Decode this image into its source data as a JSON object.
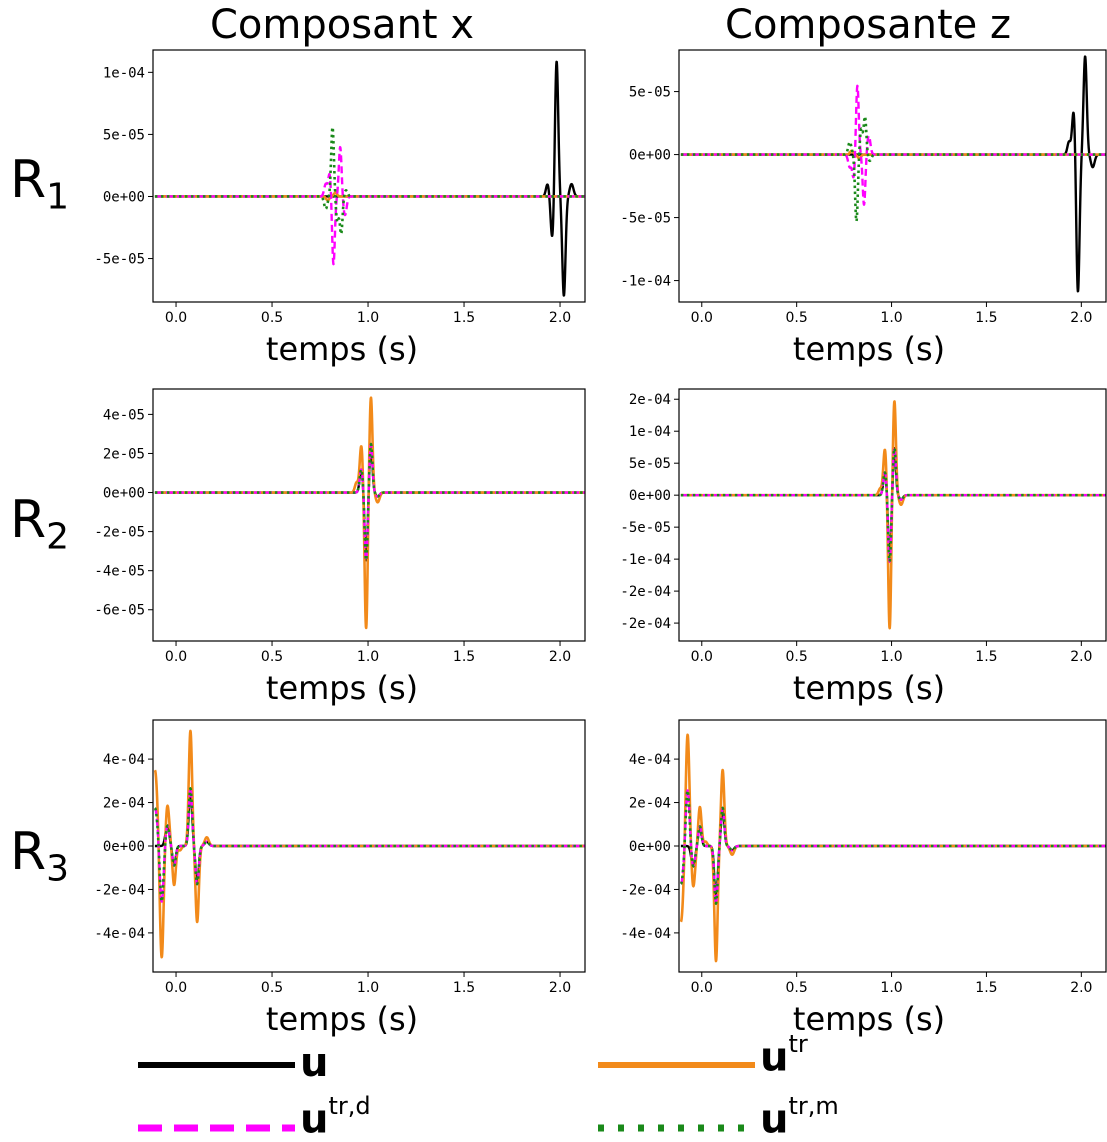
{
  "column_titles": [
    "Composant x",
    "Composante z"
  ],
  "row_labels": [
    {
      "main": "R",
      "sub": "1"
    },
    {
      "main": "R",
      "sub": "2"
    },
    {
      "main": "R",
      "sub": "3"
    }
  ],
  "legend": [
    {
      "main": "u",
      "sup": "",
      "color": "#000000",
      "style": "solid"
    },
    {
      "main": "u",
      "sup": "tr",
      "color": "#ff8c00",
      "style": "solid"
    },
    {
      "main": "u",
      "sup": "tr,d",
      "color": "#ff00ff",
      "style": "dashed"
    },
    {
      "main": "u",
      "sup": "tr,m",
      "color": "#008000",
      "style": "dotted"
    }
  ],
  "colors": {
    "u": "#000000",
    "utr": "#f28a1a",
    "utrd": "#ff00ff",
    "utrm": "#1a8a1a"
  },
  "chart_data": [
    {
      "type": "line",
      "row": 1,
      "col": 1,
      "xlabel": "temps (s)",
      "xlim": [
        -0.12,
        2.13
      ],
      "ylim": [
        -8.5e-05,
        0.000118
      ],
      "xticks": [
        0.0,
        0.5,
        1.0,
        1.5,
        2.0
      ],
      "xtick_labels": [
        "0.0",
        "0.5",
        "1.0",
        "1.5",
        "2.0"
      ],
      "yticks": [
        -5e-05,
        0.0,
        5e-05,
        0.0001
      ],
      "ytick_labels": [
        "-5e-05",
        "0e+00",
        "5e-05",
        "1e-04"
      ],
      "series": [
        {
          "key": "u",
          "pulses": [
            [
              1.935,
              1e-05,
              0.012
            ],
            [
              1.96,
              -3.5e-05,
              0.012
            ],
            [
              1.982,
              0.00011,
              0.012
            ],
            [
              2.02,
              -8e-05,
              0.012
            ],
            [
              2.06,
              1e-05,
              0.014
            ]
          ]
        },
        {
          "key": "utr",
          "pulses": [
            [
              0.79,
              -3e-06,
              0.012
            ],
            [
              0.83,
              3e-06,
              0.012
            ]
          ]
        },
        {
          "key": "utrd",
          "pulses": [
            [
              0.78,
              1e-05,
              0.012
            ],
            [
              0.8,
              1.8e-05,
              0.01
            ],
            [
              0.82,
              -5.5e-05,
              0.01
            ],
            [
              0.855,
              4e-05,
              0.01
            ],
            [
              0.88,
              -1.5e-05,
              0.012
            ]
          ]
        },
        {
          "key": "utrm",
          "pulses": [
            [
              0.78,
              -1e-05,
              0.012
            ],
            [
              0.815,
              5.6e-05,
              0.01
            ],
            [
              0.84,
              -2e-05,
              0.01
            ],
            [
              0.86,
              -3e-05,
              0.01
            ],
            [
              0.885,
              5e-06,
              0.012
            ]
          ]
        }
      ]
    },
    {
      "type": "line",
      "row": 1,
      "col": 2,
      "xlabel": "temps (s)",
      "xlim": [
        -0.12,
        2.13
      ],
      "ylim": [
        -0.000117,
        8.3e-05
      ],
      "xticks": [
        0.0,
        0.5,
        1.0,
        1.5,
        2.0
      ],
      "xtick_labels": [
        "0.0",
        "0.5",
        "1.0",
        "1.5",
        "2.0"
      ],
      "yticks": [
        -0.0001,
        -5e-05,
        0.0,
        5e-05
      ],
      "ytick_labels": [
        "-1e-04",
        "-5e-05",
        "0e+00",
        "5e-05"
      ],
      "series": [
        {
          "key": "u",
          "pulses": [
            [
              1.935,
              1e-05,
              0.012
            ],
            [
              1.96,
              3.6e-05,
              0.012
            ],
            [
              1.982,
              -0.00011,
              0.012
            ],
            [
              2.02,
              7.8e-05,
              0.012
            ],
            [
              2.06,
              -1e-05,
              0.014
            ]
          ]
        },
        {
          "key": "utr",
          "pulses": [
            [
              0.79,
              3e-06,
              0.012
            ],
            [
              0.83,
              -3e-06,
              0.012
            ]
          ]
        },
        {
          "key": "utrd",
          "pulses": [
            [
              0.78,
              -1e-05,
              0.012
            ],
            [
              0.8,
              -1.8e-05,
              0.01
            ],
            [
              0.82,
              5.5e-05,
              0.01
            ],
            [
              0.855,
              -4e-05,
              0.01
            ],
            [
              0.88,
              1.5e-05,
              0.012
            ]
          ]
        },
        {
          "key": "utrm",
          "pulses": [
            [
              0.78,
              1e-05,
              0.012
            ],
            [
              0.815,
              -5.3e-05,
              0.01
            ],
            [
              0.84,
              2e-05,
              0.01
            ],
            [
              0.86,
              3e-05,
              0.01
            ],
            [
              0.885,
              -5e-06,
              0.012
            ]
          ]
        }
      ]
    },
    {
      "type": "line",
      "row": 2,
      "col": 1,
      "xlabel": "temps (s)",
      "xlim": [
        -0.12,
        2.13
      ],
      "ylim": [
        -7.6e-05,
        5.3e-05
      ],
      "xticks": [
        0.0,
        0.5,
        1.0,
        1.5,
        2.0
      ],
      "xtick_labels": [
        "0.0",
        "0.5",
        "1.0",
        "1.5",
        "2.0"
      ],
      "yticks": [
        -6e-05,
        -4e-05,
        -2e-05,
        0.0,
        2e-05,
        4e-05
      ],
      "ytick_labels": [
        "-6e-05",
        "-4e-05",
        "-2e-05",
        "0e+00",
        "2e-05",
        "4e-05"
      ],
      "series": [
        {
          "key": "utr",
          "pulses": [
            [
              0.94,
              5e-06,
              0.012
            ],
            [
              0.965,
              2.4e-05,
              0.012
            ],
            [
              0.99,
              -7e-05,
              0.011
            ],
            [
              1.015,
              4.9e-05,
              0.011
            ],
            [
              1.05,
              -5e-06,
              0.014
            ]
          ]
        },
        {
          "key": "u",
          "pulses": [
            [
              0.965,
              1.2e-05,
              0.012
            ],
            [
              0.99,
              -3.5e-05,
              0.011
            ],
            [
              1.015,
              2.5e-05,
              0.011
            ],
            [
              1.05,
              -2e-06,
              0.014
            ]
          ]
        },
        {
          "key": "utrd",
          "pulses": [
            [
              0.965,
              1.2e-05,
              0.012
            ],
            [
              0.99,
              -3.5e-05,
              0.011
            ],
            [
              1.015,
              2.5e-05,
              0.011
            ],
            [
              1.05,
              -2e-06,
              0.014
            ]
          ]
        },
        {
          "key": "utrm",
          "pulses": [
            [
              0.965,
              1.2e-05,
              0.012
            ],
            [
              0.99,
              -3.5e-05,
              0.011
            ],
            [
              1.015,
              2.5e-05,
              0.011
            ],
            [
              1.05,
              -2e-06,
              0.014
            ]
          ]
        }
      ]
    },
    {
      "type": "line",
      "row": 2,
      "col": 2,
      "xlabel": "temps (s)",
      "xlim": [
        -0.12,
        2.13
      ],
      "ylim": [
        -0.000228,
        0.000166
      ],
      "xticks": [
        0.0,
        0.5,
        1.0,
        1.5,
        2.0
      ],
      "xtick_labels": [
        "0.0",
        "0.5",
        "1.0",
        "1.5",
        "2.0"
      ],
      "yticks": [
        -0.0002,
        -0.00015,
        -0.0001,
        -5e-05,
        0.0,
        5e-05,
        0.0001,
        0.00015
      ],
      "ytick_labels": [
        "-2e-04",
        "-2e-04",
        "-1e-04",
        "-5e-05",
        "0e+00",
        "5e-05",
        "1e-04",
        "2e-04"
      ],
      "series": [
        {
          "key": "utr",
          "pulses": [
            [
              0.94,
              1e-05,
              0.012
            ],
            [
              0.965,
              7.2e-05,
              0.012
            ],
            [
              0.99,
              -0.00021,
              0.011
            ],
            [
              1.015,
              0.000148,
              0.011
            ],
            [
              1.05,
              -1.5e-05,
              0.014
            ]
          ]
        },
        {
          "key": "u",
          "pulses": [
            [
              0.965,
              3.6e-05,
              0.012
            ],
            [
              0.99,
              -0.000105,
              0.011
            ],
            [
              1.015,
              7.4e-05,
              0.011
            ],
            [
              1.05,
              -7e-06,
              0.014
            ]
          ]
        },
        {
          "key": "utrd",
          "pulses": [
            [
              0.965,
              3.6e-05,
              0.012
            ],
            [
              0.99,
              -0.000105,
              0.011
            ],
            [
              1.015,
              7.4e-05,
              0.011
            ],
            [
              1.05,
              -7e-06,
              0.014
            ]
          ]
        },
        {
          "key": "utrm",
          "pulses": [
            [
              0.965,
              3.6e-05,
              0.012
            ],
            [
              0.99,
              -0.000105,
              0.011
            ],
            [
              1.015,
              7.4e-05,
              0.011
            ],
            [
              1.05,
              -7e-06,
              0.014
            ]
          ]
        }
      ]
    },
    {
      "type": "line",
      "row": 3,
      "col": 1,
      "xlabel": "temps (s)",
      "xlim": [
        -0.12,
        2.13
      ],
      "ylim": [
        -0.00058,
        0.00058
      ],
      "xticks": [
        0.0,
        0.5,
        1.0,
        1.5,
        2.0
      ],
      "xtick_labels": [
        "0.0",
        "0.5",
        "1.0",
        "1.5",
        "2.0"
      ],
      "yticks": [
        -0.0004,
        -0.0002,
        0.0,
        0.0002,
        0.0004
      ],
      "ytick_labels": [
        "-4e-04",
        "-2e-04",
        "0e+00",
        "2e-04",
        "4e-04"
      ],
      "series": [
        {
          "key": "utr",
          "start": 0.00035,
          "pulses": [
            [
              -0.075,
              -0.00053,
              0.014
            ],
            [
              -0.045,
              0.00019,
              0.014
            ],
            [
              -0.01,
              -0.00018,
              0.012
            ],
            [
              0.02,
              -2e-05,
              0.012
            ],
            [
              0.075,
              0.00053,
              0.012
            ],
            [
              0.11,
              -0.00035,
              0.012
            ],
            [
              0.16,
              4e-05,
              0.015
            ]
          ]
        },
        {
          "key": "u",
          "start": 0.0,
          "pulses": [
            [
              -0.045,
              9.5e-05,
              0.014
            ],
            [
              -0.01,
              -9e-05,
              0.012
            ],
            [
              0.075,
              0.000265,
              0.012
            ],
            [
              0.11,
              -0.000175,
              0.012
            ],
            [
              0.16,
              2e-05,
              0.015
            ]
          ]
        },
        {
          "key": "utrd",
          "start": 0.000175,
          "pulses": [
            [
              -0.075,
              -0.000265,
              0.014
            ],
            [
              -0.045,
              9.5e-05,
              0.014
            ],
            [
              -0.01,
              -9e-05,
              0.012
            ],
            [
              0.075,
              0.000265,
              0.012
            ],
            [
              0.11,
              -0.000175,
              0.012
            ],
            [
              0.16,
              2e-05,
              0.015
            ]
          ]
        },
        {
          "key": "utrm",
          "start": 0.000175,
          "pulses": [
            [
              -0.075,
              -0.000265,
              0.014
            ],
            [
              -0.045,
              9.5e-05,
              0.014
            ],
            [
              -0.01,
              -9e-05,
              0.012
            ],
            [
              0.075,
              0.000265,
              0.012
            ],
            [
              0.11,
              -0.000175,
              0.012
            ],
            [
              0.16,
              2e-05,
              0.015
            ]
          ]
        }
      ]
    },
    {
      "type": "line",
      "row": 3,
      "col": 2,
      "xlabel": "temps (s)",
      "xlim": [
        -0.12,
        2.13
      ],
      "ylim": [
        -0.00058,
        0.00058
      ],
      "xticks": [
        0.0,
        0.5,
        1.0,
        1.5,
        2.0
      ],
      "xtick_labels": [
        "0.0",
        "0.5",
        "1.0",
        "1.5",
        "2.0"
      ],
      "yticks": [
        -0.0004,
        -0.0002,
        0.0,
        0.0002,
        0.0004
      ],
      "ytick_labels": [
        "-4e-04",
        "-2e-04",
        "0e+00",
        "2e-04",
        "4e-04"
      ],
      "series": [
        {
          "key": "utr",
          "start": -0.00035,
          "pulses": [
            [
              -0.075,
              0.00053,
              0.014
            ],
            [
              -0.045,
              -0.00019,
              0.014
            ],
            [
              -0.01,
              0.00018,
              0.012
            ],
            [
              0.02,
              2e-05,
              0.012
            ],
            [
              0.075,
              -0.00053,
              0.012
            ],
            [
              0.11,
              0.00035,
              0.012
            ],
            [
              0.16,
              -4e-05,
              0.015
            ]
          ]
        },
        {
          "key": "u",
          "start": 0.0,
          "pulses": [
            [
              -0.045,
              -9.5e-05,
              0.014
            ],
            [
              -0.01,
              9e-05,
              0.012
            ],
            [
              0.075,
              -0.000265,
              0.012
            ],
            [
              0.11,
              0.000175,
              0.012
            ],
            [
              0.16,
              -2e-05,
              0.015
            ]
          ]
        },
        {
          "key": "utrd",
          "start": -0.000175,
          "pulses": [
            [
              -0.075,
              0.000265,
              0.014
            ],
            [
              -0.045,
              -9.5e-05,
              0.014
            ],
            [
              -0.01,
              9e-05,
              0.012
            ],
            [
              0.075,
              -0.000265,
              0.012
            ],
            [
              0.11,
              0.000175,
              0.012
            ],
            [
              0.16,
              -2e-05,
              0.015
            ]
          ]
        },
        {
          "key": "utrm",
          "start": -0.000175,
          "pulses": [
            [
              -0.075,
              0.000265,
              0.014
            ],
            [
              -0.045,
              -9.5e-05,
              0.014
            ],
            [
              -0.01,
              9e-05,
              0.012
            ],
            [
              0.075,
              -0.000265,
              0.012
            ],
            [
              0.11,
              0.000175,
              0.012
            ],
            [
              0.16,
              -2e-05,
              0.015
            ]
          ]
        }
      ]
    }
  ]
}
